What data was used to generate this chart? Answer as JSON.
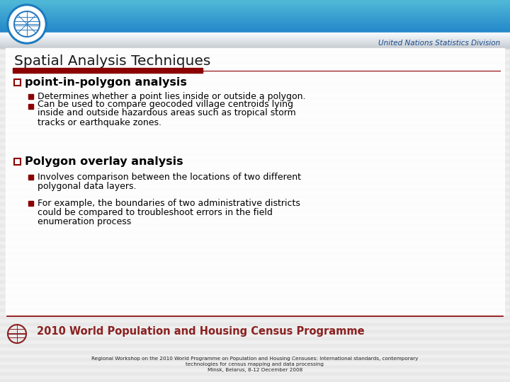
{
  "title": "Spatial Analysis Techniques",
  "un_label": "United Nations Statistics Division",
  "red_bar_color": "#8b0000",
  "bullet1_header": "point-in-polygon analysis",
  "bullet1_sub1": "Determines whether a point lies inside or outside a polygon.",
  "bullet1_sub2_l1": "Can be used to compare geocoded village centroids lying",
  "bullet1_sub2_l2": "inside and outside hazardous areas such as tropical storm",
  "bullet1_sub2_l3": "tracks or earthquake zones.",
  "bullet2_header": "Polygon overlay analysis",
  "bullet2_sub1_l1": "Involves comparison between the locations of two different",
  "bullet2_sub1_l2": "polygonal data layers.",
  "bullet2_sub2_l1": "For example, the boundaries of two administrative districts",
  "bullet2_sub2_l2": "could be compared to troubleshoot errors in the field",
  "bullet2_sub2_l3": "enumeration process",
  "footer_text1": "Regional Workshop on the 2010 World Programme on Population and Housing Censuses: International standards, contemporary",
  "footer_text2": "technologies for census mapping and data processing",
  "footer_text3": "Minsk, Belarus, 8-12 December 2008",
  "footer_banner": "2010 World Population and Housing Census Programme",
  "content_bg": "#e8e8e8",
  "slide_bg": "#f2f2f2",
  "header_blue_top": "#1e88c8",
  "header_blue_bottom": "#7ab8d8",
  "header_gray": "#c8d8e0",
  "stripe_light": "#ebebeb",
  "stripe_dark": "#e0e0e0"
}
